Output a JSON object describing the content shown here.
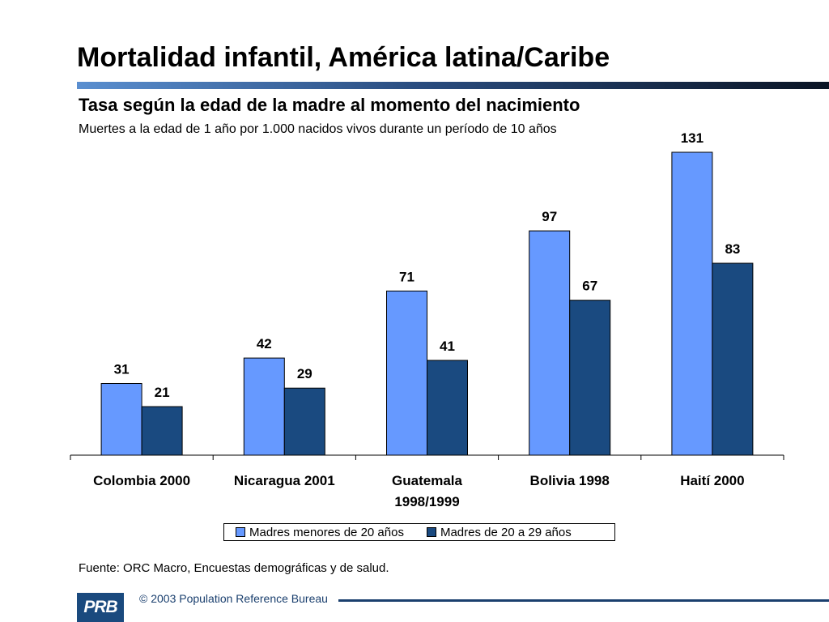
{
  "header": {
    "title": "Mortalidad infantil, América latina/Caribe",
    "subtitle": "Tasa según la edad de la madre al momento del nacimiento",
    "units": "Muertes a la edad de 1 año por 1.000 nacidos vivos durante un período de 10 años"
  },
  "chart_data": {
    "type": "bar",
    "categories": [
      "Colombia 2000",
      "Nicaragua 2001",
      "Guatemala 1998/1999",
      "Bolivia 1998",
      "Haití 2000"
    ],
    "category_lines": [
      [
        "Colombia 2000"
      ],
      [
        "Nicaragua 2001"
      ],
      [
        "Guatemala",
        "1998/1999"
      ],
      [
        "Bolivia 1998"
      ],
      [
        "Haití 2000"
      ]
    ],
    "series": [
      {
        "name": "Madres menores de 20 años",
        "values": [
          31,
          42,
          71,
          97,
          131
        ],
        "color": "#6699ff"
      },
      {
        "name": "Madres de 20 a 29 años",
        "values": [
          21,
          29,
          41,
          67,
          83
        ],
        "color": "#1a4a80"
      }
    ],
    "ylim": [
      0,
      131
    ],
    "grid": false,
    "legend_position": "bottom",
    "data_labels": true
  },
  "footer": {
    "source": "Fuente: ORC Macro, Encuestas demográficas y de salud.",
    "logo_text": "PRB",
    "copyright": "© 2003 Population Reference Bureau"
  },
  "colors": {
    "series_light": "#6699ff",
    "series_dark": "#1a4a80",
    "footer_blue": "#1a3f6e"
  }
}
